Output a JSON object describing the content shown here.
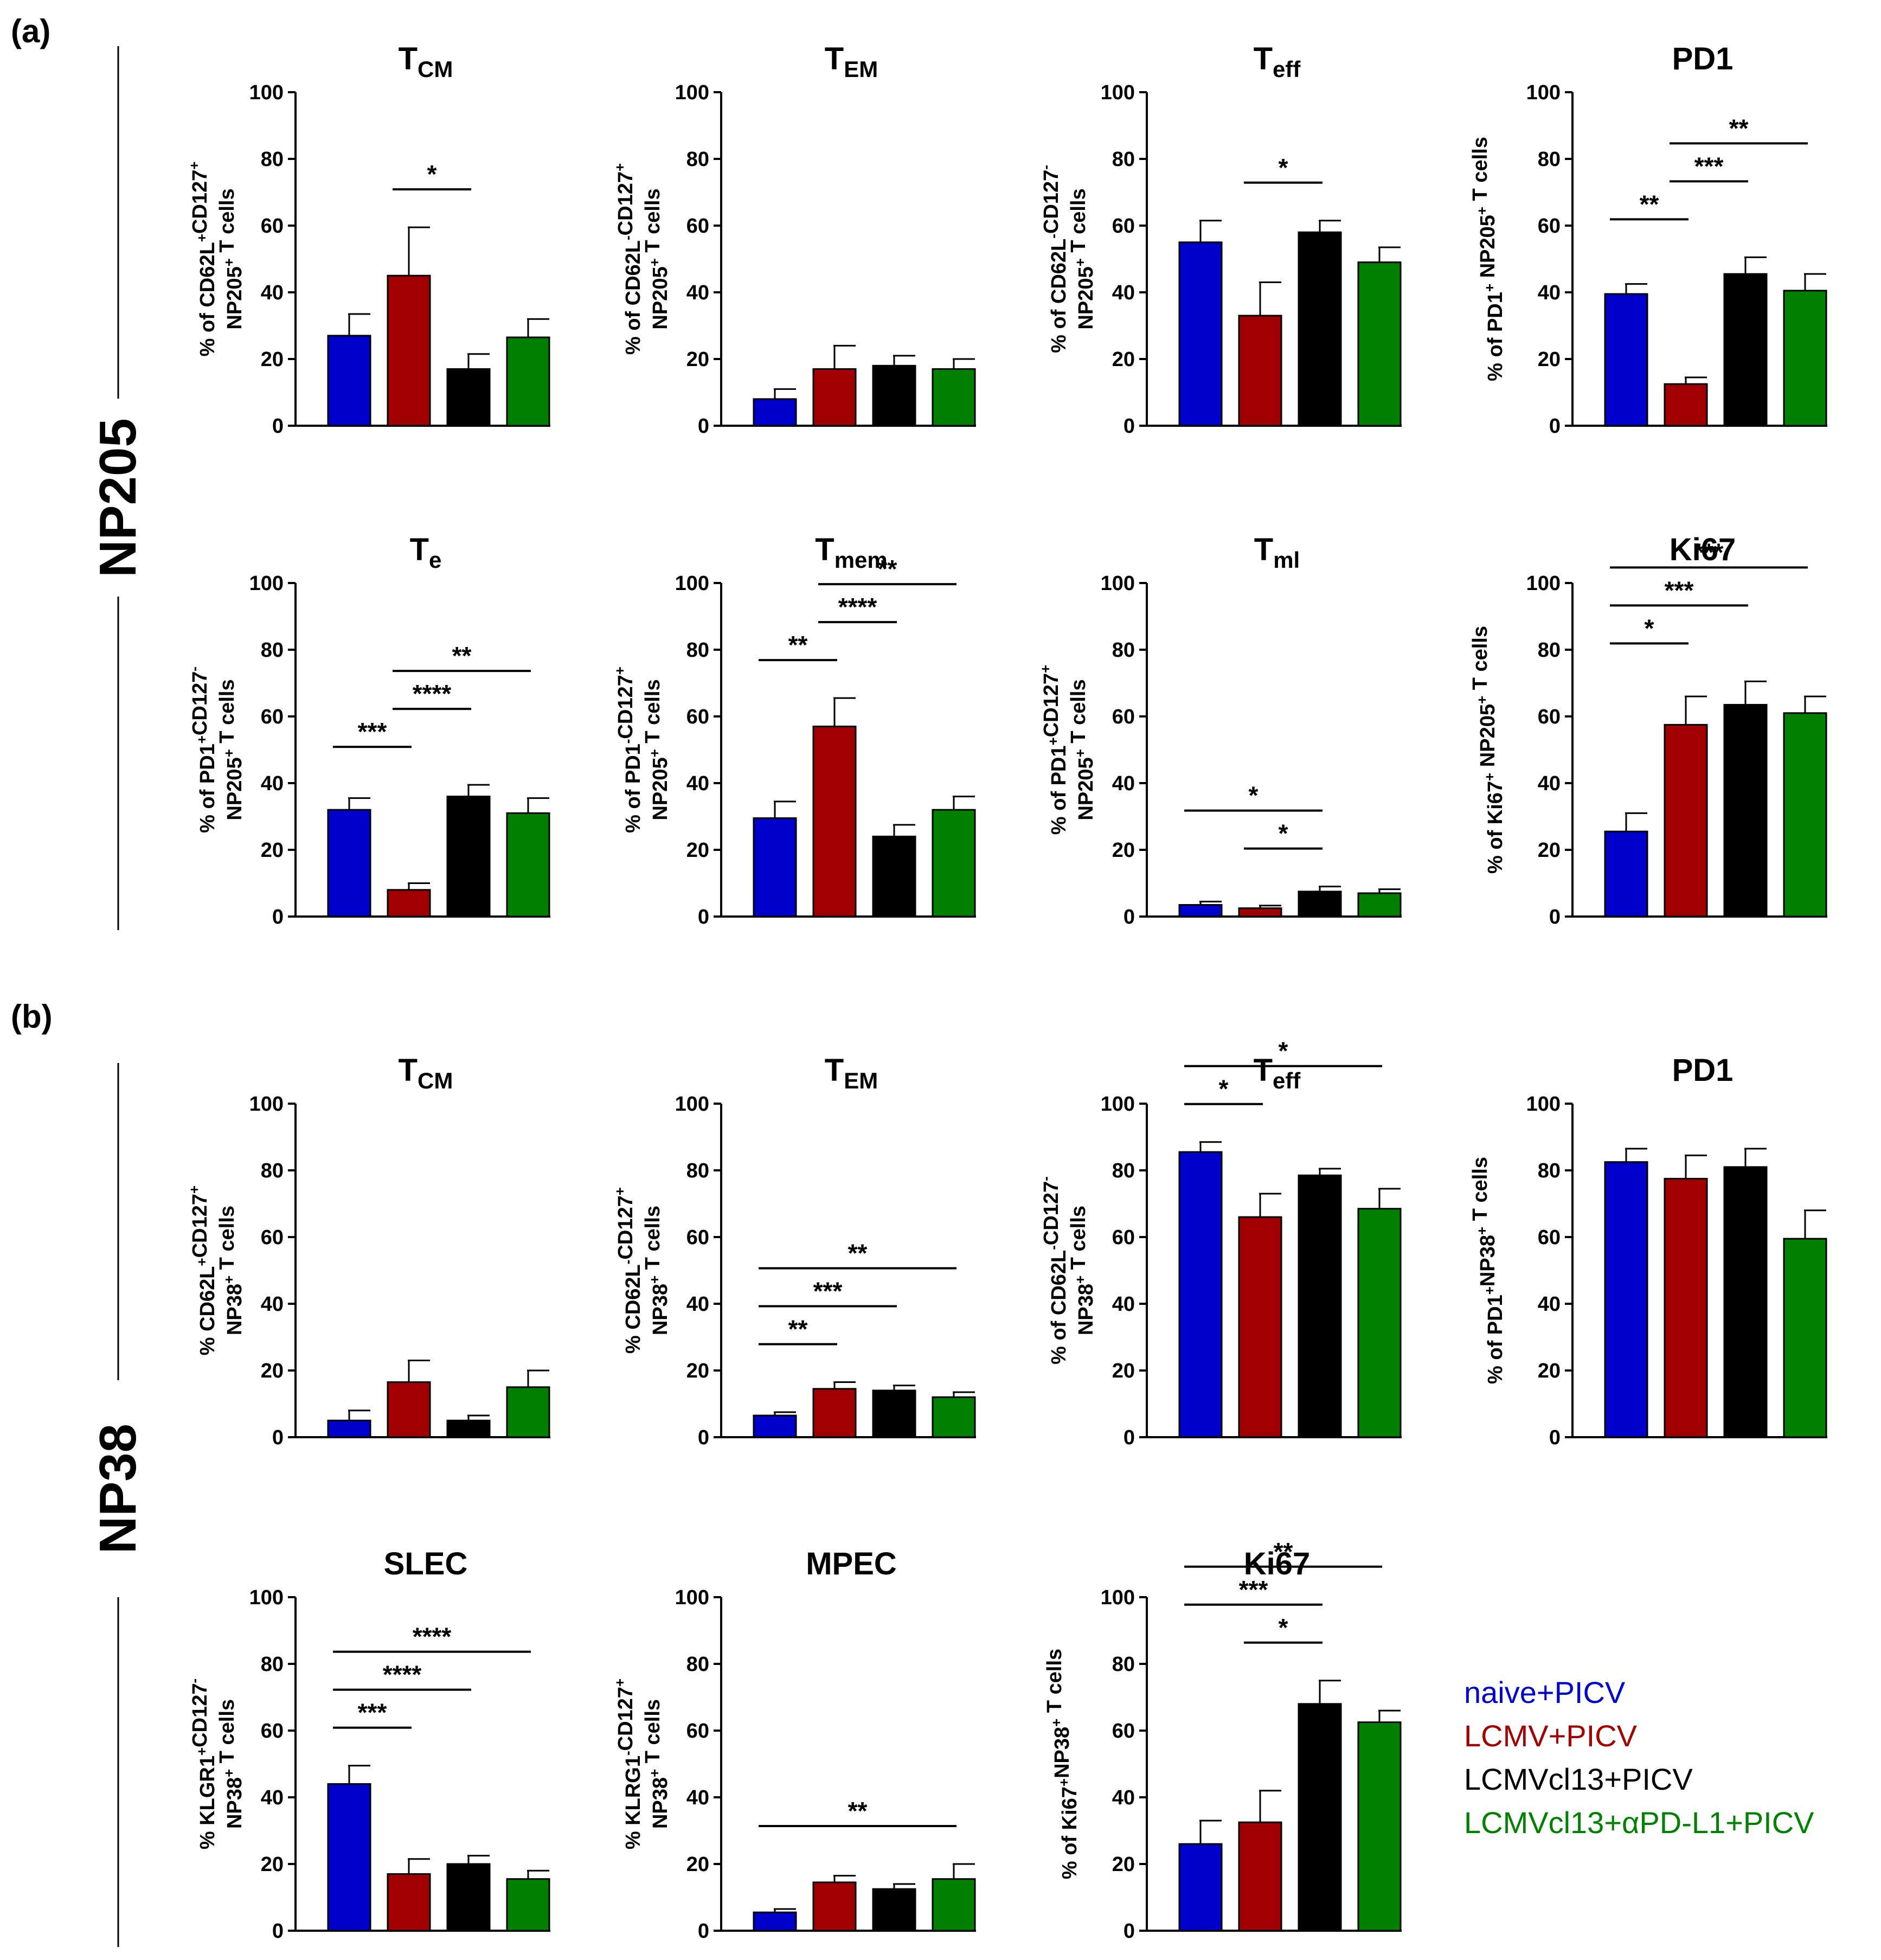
{
  "figure": {
    "panel_a_label": "(a)",
    "panel_b_label": "(b)",
    "group_a_label": "NP205",
    "group_b_label": "NP38"
  },
  "colors": {
    "blue": "#0000cc",
    "red": "#a00000",
    "black": "#000000",
    "green": "#008000"
  },
  "legend": [
    {
      "label": "naive+PICV",
      "color": "#0000cc"
    },
    {
      "label": "LCMV+PICV",
      "color": "#a00000"
    },
    {
      "label": "LCMVcl13+PICV",
      "color": "#000000"
    },
    {
      "label": "LCMVcl13+αPD-L1+PICV",
      "color": "#008000"
    }
  ],
  "chart_data": [
    {
      "type": "bar",
      "title": "T",
      "title_sub": "CM",
      "ylabel": [
        "% of CD62L⁺CD127⁺",
        "NP205⁺ T cells"
      ],
      "ylim": [
        0,
        100
      ],
      "yticks": [
        0,
        20,
        40,
        60,
        80,
        100
      ],
      "categories": [
        "naive+PICV",
        "LCMV+PICV",
        "LCMVcl13+PICV",
        "LCMVcl13+αPD-L1+PICV"
      ],
      "values": [
        27,
        45,
        17,
        26.5
      ],
      "errors": [
        6.5,
        14.5,
        4.5,
        5.5
      ],
      "significance": [
        {
          "from": 1,
          "to": 2,
          "label": "*"
        }
      ]
    },
    {
      "type": "bar",
      "title": "T",
      "title_sub": "EM",
      "ylabel": [
        "% of CD62L⁻CD127⁺",
        "NP205⁺ T cells"
      ],
      "ylim": [
        0,
        100
      ],
      "yticks": [
        0,
        20,
        40,
        60,
        80,
        100
      ],
      "categories": [
        "naive+PICV",
        "LCMV+PICV",
        "LCMVcl13+PICV",
        "LCMVcl13+αPD-L1+PICV"
      ],
      "values": [
        8,
        17,
        18,
        17
      ],
      "errors": [
        3,
        7,
        3,
        3
      ],
      "significance": []
    },
    {
      "type": "bar",
      "title": "T",
      "title_sub": "eff",
      "ylabel": [
        "% of CD62L⁻CD127⁻",
        "NP205⁺ T cells"
      ],
      "ylim": [
        0,
        100
      ],
      "yticks": [
        0,
        20,
        40,
        60,
        80,
        100
      ],
      "categories": [
        "naive+PICV",
        "LCMV+PICV",
        "LCMVcl13+PICV",
        "LCMVcl13+αPD-L1+PICV"
      ],
      "values": [
        55,
        33,
        58,
        49
      ],
      "errors": [
        6.5,
        10,
        3.5,
        4.5
      ],
      "significance": [
        {
          "from": 1,
          "to": 2,
          "label": "*"
        }
      ]
    },
    {
      "type": "bar",
      "title": "PD1",
      "title_sub": "",
      "ylabel": [
        "% of PD1⁺ NP205⁺ T cells"
      ],
      "ylim": [
        0,
        100
      ],
      "yticks": [
        0,
        20,
        40,
        60,
        80,
        100
      ],
      "categories": [
        "naive+PICV",
        "LCMV+PICV",
        "LCMVcl13+PICV",
        "LCMVcl13+αPD-L1+PICV"
      ],
      "values": [
        39.5,
        12.5,
        45.5,
        40.5
      ],
      "errors": [
        3,
        2,
        5,
        5
      ],
      "significance": [
        {
          "from": 0,
          "to": 1,
          "label": "**"
        },
        {
          "from": 1,
          "to": 2,
          "label": "***"
        },
        {
          "from": 1,
          "to": 3,
          "label": "**"
        }
      ]
    },
    {
      "type": "bar",
      "title": "T",
      "title_sub": "e",
      "ylabel": [
        "% of PD1⁺CD127⁻",
        "NP205⁺ T cells"
      ],
      "ylim": [
        0,
        100
      ],
      "yticks": [
        0,
        20,
        40,
        60,
        80,
        100
      ],
      "categories": [
        "naive+PICV",
        "LCMV+PICV",
        "LCMVcl13+PICV",
        "LCMVcl13+αPD-L1+PICV"
      ],
      "values": [
        32,
        8,
        36,
        31
      ],
      "errors": [
        3.5,
        2,
        3.5,
        4.5
      ],
      "significance": [
        {
          "from": 0,
          "to": 1,
          "label": "***"
        },
        {
          "from": 1,
          "to": 2,
          "label": "****"
        },
        {
          "from": 1,
          "to": 3,
          "label": "**"
        }
      ]
    },
    {
      "type": "bar",
      "title": "T",
      "title_sub": "mem",
      "ylabel": [
        "% of PD1⁻CD127⁺",
        "NP205⁺ T cells"
      ],
      "ylim": [
        0,
        100
      ],
      "yticks": [
        0,
        20,
        40,
        60,
        80,
        100
      ],
      "categories": [
        "naive+PICV",
        "LCMV+PICV",
        "LCMVcl13+PICV",
        "LCMVcl13+αPD-L1+PICV"
      ],
      "values": [
        29.5,
        57,
        24,
        32
      ],
      "errors": [
        5,
        8.5,
        3.5,
        4
      ],
      "significance": [
        {
          "from": 0,
          "to": 1,
          "label": "**"
        },
        {
          "from": 1,
          "to": 2,
          "label": "****"
        },
        {
          "from": 1,
          "to": 3,
          "label": "**"
        }
      ]
    },
    {
      "type": "bar",
      "title": "T",
      "title_sub": "ml",
      "ylabel": [
        "% of PD1⁺CD127⁺",
        "NP205⁺ T cells"
      ],
      "ylim": [
        0,
        100
      ],
      "yticks": [
        0,
        20,
        40,
        60,
        80,
        100
      ],
      "categories": [
        "naive+PICV",
        "LCMV+PICV",
        "LCMVcl13+PICV",
        "LCMVcl13+αPD-L1+PICV"
      ],
      "values": [
        3.5,
        2.5,
        7.5,
        7
      ],
      "errors": [
        1,
        0.8,
        1.5,
        1.2
      ],
      "significance": [
        {
          "from": 0,
          "to": 2,
          "label": "*"
        },
        {
          "from": 1,
          "to": 2,
          "label": "*"
        }
      ]
    },
    {
      "type": "bar",
      "title": "Ki67",
      "title_sub": "",
      "ylabel": [
        "% of Ki67⁺ NP205⁺ T cells"
      ],
      "ylim": [
        0,
        100
      ],
      "yticks": [
        0,
        20,
        40,
        60,
        80,
        100
      ],
      "categories": [
        "naive+PICV",
        "LCMV+PICV",
        "LCMVcl13+PICV",
        "LCMVcl13+αPD-L1+PICV"
      ],
      "values": [
        25.5,
        57.5,
        63.5,
        61
      ],
      "errors": [
        5.5,
        8.5,
        7,
        5
      ],
      "significance": [
        {
          "from": 0,
          "to": 1,
          "label": "*"
        },
        {
          "from": 0,
          "to": 2,
          "label": "***"
        },
        {
          "from": 0,
          "to": 3,
          "label": "***"
        }
      ]
    },
    {
      "type": "bar",
      "title": "T",
      "title_sub": "CM",
      "ylabel": [
        "% CD62L⁺CD127⁺",
        "NP38⁺ T cells"
      ],
      "ylim": [
        0,
        100
      ],
      "yticks": [
        0,
        20,
        40,
        60,
        80,
        100
      ],
      "categories": [
        "naive+PICV",
        "LCMV+PICV",
        "LCMVcl13+PICV",
        "LCMVcl13+αPD-L1+PICV"
      ],
      "values": [
        5,
        16.5,
        5,
        15
      ],
      "errors": [
        3,
        6.5,
        1.5,
        5
      ],
      "significance": []
    },
    {
      "type": "bar",
      "title": "T",
      "title_sub": "EM",
      "ylabel": [
        "% CD62L⁻CD127⁺",
        "NP38⁺ T cells"
      ],
      "ylim": [
        0,
        100
      ],
      "yticks": [
        0,
        20,
        40,
        60,
        80,
        100
      ],
      "categories": [
        "naive+PICV",
        "LCMV+PICV",
        "LCMVcl13+PICV",
        "LCMVcl13+αPD-L1+PICV"
      ],
      "values": [
        6.5,
        14.5,
        14,
        12
      ],
      "errors": [
        1,
        2,
        1.5,
        1.5
      ],
      "significance": [
        {
          "from": 0,
          "to": 1,
          "label": "**"
        },
        {
          "from": 0,
          "to": 2,
          "label": "***"
        },
        {
          "from": 0,
          "to": 3,
          "label": "**"
        }
      ]
    },
    {
      "type": "bar",
      "title": "T",
      "title_sub": "eff",
      "ylabel": [
        "% of CD62L⁻CD127⁻",
        "NP38⁺ T cells"
      ],
      "ylim": [
        0,
        100
      ],
      "yticks": [
        0,
        20,
        40,
        60,
        80,
        100
      ],
      "categories": [
        "naive+PICV",
        "LCMV+PICV",
        "LCMVcl13+PICV",
        "LCMVcl13+αPD-L1+PICV"
      ],
      "values": [
        85.5,
        66,
        78.5,
        68.5
      ],
      "errors": [
        3,
        7,
        2,
        6
      ],
      "significance": [
        {
          "from": 0,
          "to": 1,
          "label": "*"
        },
        {
          "from": 0,
          "to": 3,
          "label": "*"
        }
      ]
    },
    {
      "type": "bar",
      "title": "PD1",
      "title_sub": "",
      "ylabel": [
        "% of PD1⁺NP38⁺ T cells"
      ],
      "ylim": [
        0,
        100
      ],
      "yticks": [
        0,
        20,
        40,
        60,
        80,
        100
      ],
      "categories": [
        "naive+PICV",
        "LCMV+PICV",
        "LCMVcl13+PICV",
        "LCMVcl13+αPD-L1+PICV"
      ],
      "values": [
        82.5,
        77.5,
        81,
        59.5
      ],
      "errors": [
        4,
        7,
        5.5,
        8.5
      ],
      "significance": []
    },
    {
      "type": "bar",
      "title": "SLEC",
      "title_sub": "",
      "ylabel": [
        "% KLGR1⁺CD127⁻",
        "NP38⁺ T cells"
      ],
      "ylim": [
        0,
        100
      ],
      "yticks": [
        0,
        20,
        40,
        60,
        80,
        100
      ],
      "categories": [
        "naive+PICV",
        "LCMV+PICV",
        "LCMVcl13+PICV",
        "LCMVcl13+αPD-L1+PICV"
      ],
      "values": [
        44,
        17,
        20,
        15.5
      ],
      "errors": [
        5.5,
        4.5,
        2.5,
        2.5
      ],
      "significance": [
        {
          "from": 0,
          "to": 1,
          "label": "***"
        },
        {
          "from": 0,
          "to": 2,
          "label": "****"
        },
        {
          "from": 0,
          "to": 3,
          "label": "****"
        }
      ]
    },
    {
      "type": "bar",
      "title": "MPEC",
      "title_sub": "",
      "ylabel": [
        "% KLRG1⁻CD127⁺",
        "NP38⁺ T cells"
      ],
      "ylim": [
        0,
        100
      ],
      "yticks": [
        0,
        20,
        40,
        60,
        80,
        100
      ],
      "categories": [
        "naive+PICV",
        "LCMV+PICV",
        "LCMVcl13+PICV",
        "LCMVcl13+αPD-L1+PICV"
      ],
      "values": [
        5.5,
        14.5,
        12.5,
        15.5
      ],
      "errors": [
        1,
        2,
        1.5,
        4.5
      ],
      "significance": [
        {
          "from": 0,
          "to": 3,
          "label": "**"
        }
      ]
    },
    {
      "type": "bar",
      "title": "Ki67",
      "title_sub": "",
      "ylabel": [
        "% of Ki67⁺NP38⁺ T cells"
      ],
      "ylim": [
        0,
        100
      ],
      "yticks": [
        0,
        20,
        40,
        60,
        80,
        100
      ],
      "categories": [
        "naive+PICV",
        "LCMV+PICV",
        "LCMVcl13+PICV",
        "LCMVcl13+αPD-L1+PICV"
      ],
      "values": [
        26,
        32.5,
        68,
        62.5
      ],
      "errors": [
        7,
        9.5,
        7,
        3.5
      ],
      "significance": [
        {
          "from": 0,
          "to": 3,
          "label": "**"
        },
        {
          "from": 0,
          "to": 2,
          "label": "***"
        },
        {
          "from": 1,
          "to": 2,
          "label": "*"
        }
      ]
    }
  ]
}
